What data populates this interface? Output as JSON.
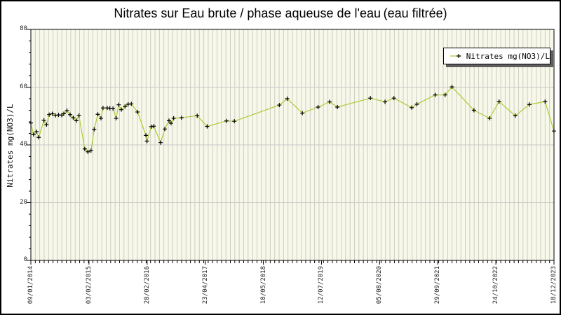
{
  "colors": {
    "page_bg": "#ffffff",
    "outer_border": "#000000",
    "plot_bg": "#f7f7ea",
    "grid_vertical": "#cdcdc2",
    "grid_horizontal": "#c9c9c9",
    "axis": "#000000",
    "line": "#aacc33",
    "marker": "#000000",
    "legend_bg": "#ffffff",
    "legend_shadow": "#5f5f5f",
    "tick_text": "#222222"
  },
  "chart_data": {
    "type": "line",
    "title": "Nitrates sur Eau brute / phase aqueuse de l'eau (eau filtrée)",
    "ylabel": "Nitrates mg(NO3)/L",
    "xlabel": "",
    "ylim": [
      0,
      80
    ],
    "y_major_ticks": [
      0,
      20,
      40,
      60,
      80
    ],
    "y_minor_step": 4,
    "x_axis_type": "time, 09/01/2014 to 18/12/2023; point x stored as fraction 0-1 of axis width",
    "x_tick_labels": [
      "09/01/2014",
      "03/02/2015",
      "28/02/2016",
      "23/04/2017",
      "18/05/2018",
      "12/07/2019",
      "05/08/2020",
      "29/09/2021",
      "24/10/2022",
      "18/12/2023"
    ],
    "x_minor_divisions": 118,
    "grid": {
      "vertical": "light stripe at every minor x tick",
      "horizontal": "lines at y=20,40,60"
    },
    "legend": {
      "position": "top-right-inside",
      "entries": [
        "Nitrates mg(NO3)/L"
      ]
    },
    "series": [
      {
        "name": "Nitrates mg(NO3)/L",
        "color": "#aacc33",
        "marker": "black-cross",
        "points": [
          [
            0.0,
            47.6
          ],
          [
            0.005,
            43.6
          ],
          [
            0.011,
            44.6
          ],
          [
            0.015,
            42.6
          ],
          [
            0.025,
            48.5
          ],
          [
            0.03,
            47.0
          ],
          [
            0.035,
            50.5
          ],
          [
            0.041,
            50.8
          ],
          [
            0.047,
            50.2
          ],
          [
            0.053,
            50.4
          ],
          [
            0.059,
            50.3
          ],
          [
            0.063,
            50.8
          ],
          [
            0.069,
            51.9
          ],
          [
            0.075,
            50.5
          ],
          [
            0.081,
            49.4
          ],
          [
            0.087,
            48.4
          ],
          [
            0.092,
            50.2
          ],
          [
            0.103,
            38.6
          ],
          [
            0.109,
            37.6
          ],
          [
            0.115,
            38.0
          ],
          [
            0.121,
            45.4
          ],
          [
            0.128,
            50.6
          ],
          [
            0.134,
            49.2
          ],
          [
            0.138,
            52.8
          ],
          [
            0.146,
            52.8
          ],
          [
            0.151,
            52.7
          ],
          [
            0.157,
            52.6
          ],
          [
            0.163,
            49.2
          ],
          [
            0.168,
            53.9
          ],
          [
            0.173,
            52.2
          ],
          [
            0.18,
            53.3
          ],
          [
            0.186,
            54.1
          ],
          [
            0.192,
            54.2
          ],
          [
            0.204,
            51.4
          ],
          [
            0.22,
            43.3
          ],
          [
            0.222,
            41.3
          ],
          [
            0.23,
            46.3
          ],
          [
            0.235,
            46.5
          ],
          [
            0.248,
            40.8
          ],
          [
            0.256,
            45.5
          ],
          [
            0.264,
            48.4
          ],
          [
            0.268,
            47.5
          ],
          [
            0.273,
            49.2
          ],
          [
            0.288,
            49.4
          ],
          [
            0.318,
            50.1
          ],
          [
            0.337,
            46.4
          ],
          [
            0.374,
            48.3
          ],
          [
            0.389,
            48.2
          ],
          [
            0.475,
            53.8
          ],
          [
            0.49,
            56.0
          ],
          [
            0.519,
            51.0
          ],
          [
            0.549,
            53.1
          ],
          [
            0.571,
            54.9
          ],
          [
            0.586,
            53.1
          ],
          [
            0.649,
            56.2
          ],
          [
            0.677,
            54.9
          ],
          [
            0.694,
            56.2
          ],
          [
            0.728,
            52.9
          ],
          [
            0.738,
            54.1
          ],
          [
            0.773,
            57.3
          ],
          [
            0.792,
            57.3
          ],
          [
            0.805,
            60.1
          ],
          [
            0.847,
            52.0
          ],
          [
            0.877,
            49.2
          ],
          [
            0.895,
            55.0
          ],
          [
            0.926,
            50.1
          ],
          [
            0.953,
            54.0
          ],
          [
            0.983,
            55.0
          ],
          [
            1.0,
            44.8
          ]
        ]
      }
    ]
  }
}
